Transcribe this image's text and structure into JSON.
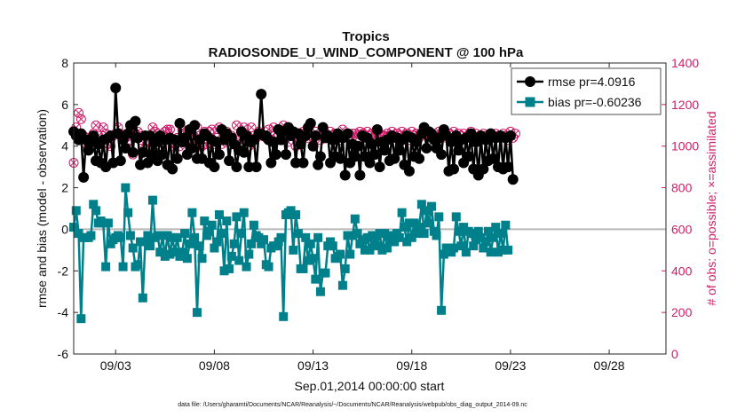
{
  "chart_data": {
    "type": "line",
    "title": "Tropics",
    "subtitle": "RADIOSONDE_U_WIND_COMPONENT @ 100 hPa",
    "xlabel": "Sep.01,2014 00:00:00 start",
    "ylabel_left": "rmse and bias (model - observation)",
    "ylabel_right": "# of obs: o=possible; ×=assimilated",
    "footnote": "data file: /Users/gharamti/Documents/NCAR/Reanalysis/~/Documents/NCAR/Reanalysis/webpub/obs_diag_output_2014-09.nc",
    "xlim": [
      0.875,
      30.875
    ],
    "ylim_left": [
      -6,
      8
    ],
    "ylim_right": [
      0,
      1400
    ],
    "x_ticks": [
      3,
      8,
      13,
      18,
      23,
      28
    ],
    "x_tick_labels": [
      "09/03",
      "09/08",
      "09/13",
      "09/18",
      "09/23",
      "09/28"
    ],
    "y_ticks_left": [
      -6,
      -4,
      -2,
      0,
      2,
      4,
      6,
      8
    ],
    "y_ticks_right": [
      0,
      200,
      400,
      600,
      800,
      1000,
      1200,
      1400
    ],
    "zero_line": 0,
    "series": [
      {
        "name": "rmse",
        "legend": "rmse pr=4.0916",
        "axis": "left",
        "color": "#000000",
        "marker": "circle",
        "values": [
          4.7,
          4.5,
          4.3,
          4.6,
          2.5,
          4.3,
          3.8,
          4.2,
          4.5,
          3.3,
          4.1,
          3.2,
          4.3,
          3.0,
          4.4,
          4.5,
          3.2,
          6.8,
          4.6,
          3.3,
          4.3,
          3.9,
          4.6,
          5.0,
          3.7,
          5.2,
          4.4,
          3.1,
          3.7,
          4.5,
          3.2,
          4.5,
          3.6,
          4.2,
          3.3,
          4.5,
          3.6,
          4.3,
          3.1,
          4.4,
          2.9,
          4.3,
          3.4,
          5.1,
          4.2,
          4.4,
          3.6,
          4.8,
          3.9,
          5.0,
          3.4,
          4.3,
          3.4,
          4.6,
          4.5,
          3.2,
          4.3,
          3.0,
          4.2,
          3.6,
          4.8,
          4.3,
          4.6,
          3.3,
          4.4,
          4.1,
          3.0,
          3.8,
          4.7,
          3.7,
          4.5,
          3.0,
          4.2,
          4.3,
          3.0,
          4.6,
          6.5,
          4.5,
          4.5,
          4.3,
          3.2,
          4.2,
          3.6,
          4.8,
          4.3,
          4.7,
          3.6,
          4.9,
          4.5,
          4.7,
          3.2,
          4.6,
          4.1,
          3.2,
          4.5,
          4.9,
          5.1,
          4.0,
          4.5,
          3.1,
          3.5,
          4.9,
          4.4,
          4.5,
          3.2,
          4.3,
          3.5,
          4.6,
          3.4,
          4.4,
          2.6,
          4.6,
          3.2,
          4.1,
          3.5,
          4.0,
          2.6,
          4.5,
          3.5,
          4.4,
          3.2,
          4.1,
          3.6,
          4.8,
          3.0,
          4.2,
          3.8,
          4.3,
          3.3,
          4.5,
          3.4,
          4.4,
          3.8,
          4.3,
          3.1,
          4.5,
          2.8,
          4.4,
          3.5,
          4.2,
          3.4,
          4.6,
          4.9,
          3.9,
          4.7,
          4.6,
          4.3,
          3.9,
          4.4,
          3.6,
          4.8,
          4.5,
          2.8,
          4.2,
          2.9,
          4.5,
          3.8,
          4.3,
          3.2,
          4.4,
          3.5,
          4.6,
          2.9,
          4.2,
          2.6,
          4.5,
          2.9,
          4.3,
          3.3,
          4.6,
          3.4,
          4.4,
          3.0,
          4.5,
          2.9,
          4.4,
          3.0,
          4.5,
          2.4
        ]
      },
      {
        "name": "bias",
        "legend": "bias pr=-0.60236",
        "axis": "left",
        "color": "#00808A",
        "marker": "square",
        "values": [
          0.1,
          0.9,
          -0.2,
          -4.3,
          -0.4,
          -0.4,
          -0.4,
          -0.3,
          1.2,
          0.9,
          0.3,
          0.4,
          0.3,
          -1.8,
          0.3,
          -0.7,
          -0.5,
          -0.4,
          -0.3,
          -0.4,
          -1.8,
          2.0,
          0.8,
          -0.3,
          -0.9,
          -1.8,
          -1.7,
          -0.6,
          -3.3,
          -0.6,
          -0.3,
          -0.8,
          1.4,
          -0.4,
          -0.3,
          -1.1,
          -0.3,
          -1.3,
          -0.3,
          -1.2,
          -0.4,
          -1.1,
          -0.4,
          -1.3,
          -1.1,
          -0.2,
          -1.4,
          -0.7,
          0.8,
          -0.4,
          -4.0,
          -0.8,
          -1.4,
          0.4,
          -0.3,
          -0.1,
          0.2,
          -0.9,
          -0.6,
          0.7,
          -0.2,
          -2.0,
          0.4,
          -1.9,
          -1.3,
          -0.7,
          0.6,
          -1.5,
          -0.2,
          0.8,
          -1.8,
          -1.2,
          -0.7,
          0.2,
          -0.3,
          -0.4,
          -0.7,
          -0.5,
          -1.7,
          -1.8,
          -0.9,
          -0.8,
          -0.8,
          -0.6,
          -0.4,
          -4.2,
          0.7,
          0.8,
          0.9,
          -1.0,
          0.7,
          -0.2,
          -1.9,
          -1.9,
          -0.4,
          -1.5,
          -0.7,
          -1.4,
          -2.4,
          -0.4,
          -3.0,
          -2.1,
          -2.1,
          -0.8,
          -0.6,
          -0.8,
          -1.4,
          -1.3,
          -1.2,
          -2.7,
          -1.9,
          -0.3,
          -1.2,
          -0.3,
          0.5,
          -0.2,
          -0.7,
          -0.5,
          -1.0,
          -0.4,
          -1.0,
          -0.3,
          -0.6,
          -0.8,
          -0.2,
          -1.0,
          -0.2,
          -0.9,
          -0.5,
          -0.3,
          -0.6,
          -0.2,
          -0.4,
          0.8,
          0.1,
          -0.6,
          0.3,
          -0.4,
          0.3,
          -0.2,
          0.1,
          1.2,
          -0.2,
          0.9,
          0.3,
          1.1,
          -0.1,
          -0.3,
          0.6,
          -3.9,
          -1.2,
          -0.9,
          -0.9,
          -1.1,
          -0.9,
          0.6,
          -0.1,
          -0.8,
          0.1,
          -1.1,
          -0.1,
          -0.2,
          -0.8,
          -0.5,
          -0.1,
          -0.4,
          -0.9,
          -0.6,
          -0.1,
          -1.1,
          -0.4,
          0.1,
          -1.1,
          -0.2,
          -1.0,
          0.2,
          -1.0
        ]
      },
      {
        "name": "obs_possible",
        "legend": "possible",
        "axis": "right",
        "color": "#D01C6A",
        "marker": "open-circle",
        "values": [
          920,
          1090,
          1160,
          1130,
          1050,
          1010,
          1040,
          990,
          1060,
          1100,
          1050,
          1020,
          1090,
          1060,
          1010,
          1000,
          1050,
          1060,
          1090,
          1060,
          1000,
          1040,
          990,
          1050,
          960,
          1060,
          1070,
          1030,
          1050,
          990,
          1000,
          1050,
          1090,
          1070,
          1060,
          1000,
          1050,
          1070,
          1080,
          1080,
          1000,
          1010,
          1040,
          1000,
          1080,
          1060,
          1030,
          1010,
          1050,
          1040,
          1090,
          1050,
          1000,
          1070,
          1010,
          1070,
          1080,
          1010,
          1040,
          1090,
          1010,
          1050,
          1070,
          1040,
          1050,
          1010,
          1100,
          1030,
          1060,
          1090,
          1040,
          1000,
          1090,
          1050,
          1040,
          1070,
          1060,
          1050,
          1040,
          1080,
          1030,
          1090,
          1040,
          1050,
          1060,
          1100,
          1050,
          1020,
          1070,
          1050,
          1000,
          1040,
          1060,
          1070,
          1060,
          1040,
          1050,
          1040,
          1070,
          1050,
          1030,
          1050,
          1060,
          1040,
          1070,
          1050,
          1060,
          1050,
          1030,
          1080,
          1050,
          1040,
          1050,
          1060,
          1060,
          1040,
          1070,
          1060,
          1050,
          1070,
          1050,
          1060,
          1040,
          1070,
          1060,
          1050,
          1050,
          1060,
          1050,
          1070,
          1040,
          1060,
          1050,
          1070,
          1040,
          1060,
          1030,
          1070,
          1050,
          1060,
          1040,
          1050,
          1060,
          1070,
          1050,
          1060,
          1040,
          1050,
          1070,
          1060,
          1050,
          1040,
          1060,
          1050,
          1070,
          1040,
          1060,
          1050,
          1060,
          1040,
          1050,
          1070,
          1050,
          1060,
          1040,
          1050,
          1060,
          1050,
          1040,
          1060,
          1050,
          1060,
          1050,
          1040,
          1060,
          1050,
          1030,
          1070,
          1040,
          1060
        ]
      },
      {
        "name": "obs_assimilated",
        "legend": "assimilated",
        "axis": "right",
        "color": "#D01C6A",
        "marker": "x",
        "values": [
          920,
          1090,
          1160,
          1130,
          1050,
          1010,
          1040,
          990,
          1060,
          1100,
          1050,
          1020,
          1090,
          1060,
          1010,
          1000,
          1050,
          1060,
          1090,
          1060,
          1000,
          1040,
          990,
          1050,
          960,
          1060,
          1070,
          1030,
          1050,
          990,
          1000,
          1050,
          1090,
          1070,
          1060,
          1000,
          1050,
          1070,
          1080,
          1080,
          1000,
          1010,
          1040,
          1000,
          1080,
          1060,
          1030,
          1010,
          1050,
          1040,
          1090,
          1050,
          1000,
          1070,
          1010,
          1070,
          1080,
          1010,
          1040,
          1090,
          1010,
          1050,
          1070,
          1040,
          1050,
          1010,
          1100,
          1030,
          1060,
          1090,
          1040,
          1000,
          1090,
          1050,
          1040,
          1070,
          1060,
          1050,
          1040,
          1080,
          1030,
          1090,
          1040,
          1050,
          1060,
          1100,
          1050,
          1020,
          1070,
          1050,
          1000,
          1040,
          1060,
          1070,
          1060,
          1040,
          1050,
          1040,
          1070,
          1050,
          1030,
          1050,
          1060,
          1040,
          1070,
          1050,
          1060,
          1050,
          1030,
          1080,
          1050,
          1040,
          1050,
          1060,
          1060,
          1040,
          1070,
          1060,
          1050,
          1070,
          1050,
          1060,
          1040,
          1070,
          1060,
          1050,
          1050,
          1060,
          1050,
          1070,
          1040,
          1060,
          1050,
          1070,
          1040,
          1060,
          1030,
          1070,
          1050,
          1060,
          1040,
          1050,
          1060,
          1070,
          1050,
          1060,
          1040,
          1050,
          1070,
          1060,
          1050,
          1040,
          1060,
          1050,
          1070,
          1040,
          1060,
          1050,
          1060,
          1040,
          1050,
          1070,
          1050,
          1060,
          1040,
          1050,
          1060,
          1050,
          1040,
          1060,
          1050,
          1060,
          1050,
          1040,
          1060,
          1050,
          1030,
          1070,
          1040,
          1060
        ]
      }
    ]
  }
}
